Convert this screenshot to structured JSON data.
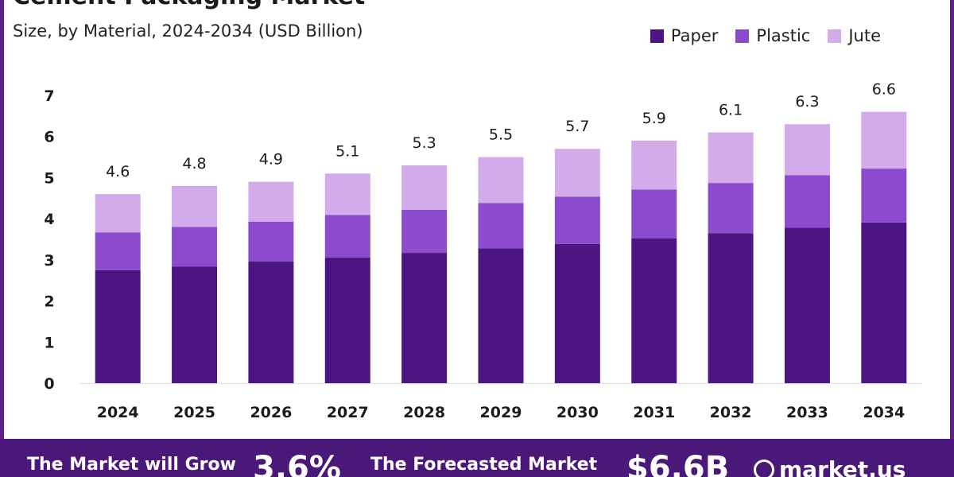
{
  "header": {
    "title": "Cement Packaging Market",
    "subtitle": "Size, by Material, 2024-2034 (USD Billion)"
  },
  "legend": [
    {
      "label": "Paper",
      "color": "#4c1582"
    },
    {
      "label": "Plastic",
      "color": "#8b4bcc"
    },
    {
      "label": "Jute",
      "color": "#d3aaea"
    }
  ],
  "chart_data": {
    "type": "bar",
    "stacked": true,
    "categories": [
      "2024",
      "2025",
      "2026",
      "2027",
      "2028",
      "2029",
      "2030",
      "2031",
      "2032",
      "2033",
      "2034"
    ],
    "series": [
      {
        "name": "Paper",
        "color": "#4c1582",
        "values": [
          2.75,
          2.84,
          2.96,
          3.06,
          3.17,
          3.28,
          3.39,
          3.52,
          3.65,
          3.78,
          3.91
        ]
      },
      {
        "name": "Plastic",
        "color": "#8b4bcc",
        "values": [
          0.92,
          0.96,
          0.97,
          1.03,
          1.05,
          1.1,
          1.15,
          1.19,
          1.22,
          1.28,
          1.31
        ]
      },
      {
        "name": "Jute",
        "color": "#d3aaea",
        "values": [
          0.93,
          1.0,
          0.97,
          1.01,
          1.08,
          1.12,
          1.16,
          1.19,
          1.23,
          1.24,
          1.38
        ]
      }
    ],
    "totals": [
      "4.6",
      "4.8",
      "4.9",
      "5.1",
      "5.3",
      "5.5",
      "5.7",
      "5.9",
      "6.1",
      "6.3",
      "6.6"
    ],
    "yticks": [
      0,
      1,
      2,
      3,
      4,
      5,
      6,
      7
    ],
    "ylim": [
      0,
      7
    ],
    "grid": false,
    "legend_position": "top-right"
  },
  "footer": {
    "grow_text": "The Market will Grow",
    "cagr_value": "3.6%",
    "forecast_text": "The Forecasted Market",
    "forecast_value": "$6.6B",
    "brand": "market.us"
  }
}
